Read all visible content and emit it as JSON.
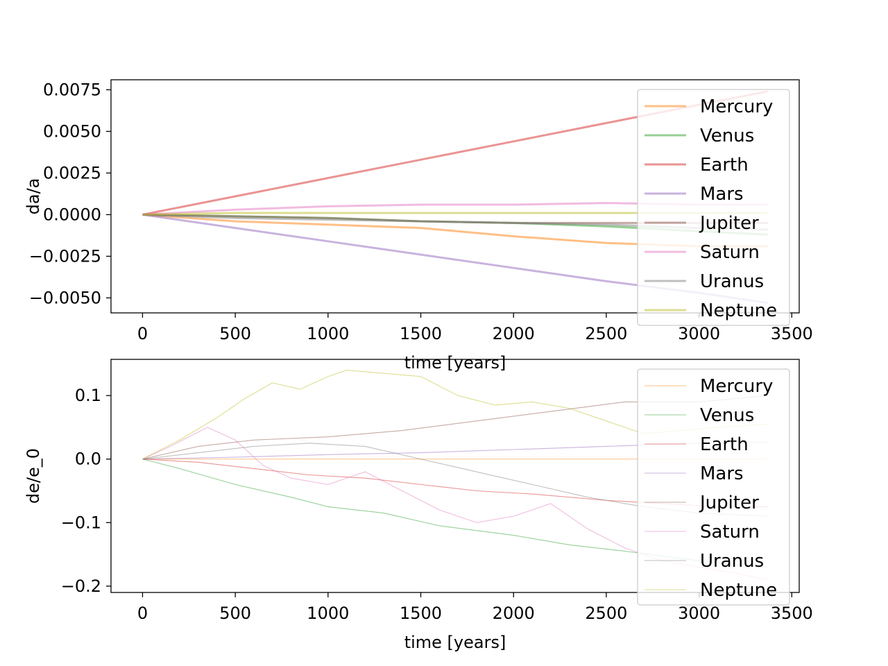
{
  "chart_data": [
    {
      "type": "line",
      "title": "",
      "xlabel": "time [years]",
      "ylabel": "da/a",
      "xlim": [
        -170,
        3540
      ],
      "ylim": [
        -0.0059,
        0.0081
      ],
      "xticks": [
        0,
        500,
        1000,
        1500,
        2000,
        2500,
        3000,
        3500
      ],
      "xtick_labels": [
        "0",
        "500",
        "1000",
        "1500",
        "2000",
        "2500",
        "3000",
        "3500"
      ],
      "yticks": [
        -0.005,
        -0.0025,
        0.0,
        0.0025,
        0.005,
        0.0075
      ],
      "ytick_labels": [
        "−0.0050",
        "−0.0025",
        "0.0000",
        "0.0025",
        "0.0050",
        "0.0075"
      ],
      "legend": {
        "location": "top-right",
        "show": true
      },
      "grid": false,
      "series": [
        {
          "name": "Mercury",
          "color": "#ff7f0e",
          "x": [
            0,
            500,
            1000,
            1500,
            2000,
            2500,
            3000,
            3370
          ],
          "y": [
            0,
            -0.0004,
            -0.0006,
            -0.0008,
            -0.0013,
            -0.0017,
            -0.0019,
            -0.0019
          ]
        },
        {
          "name": "Venus",
          "color": "#2ca02c",
          "x": [
            0,
            500,
            1000,
            1500,
            2000,
            2500,
            3000,
            3370
          ],
          "y": [
            0,
            -0.0001,
            -0.0002,
            -0.0004,
            -0.0005,
            -0.0007,
            -0.001,
            -0.0012
          ]
        },
        {
          "name": "Earth",
          "color": "#d62728",
          "x": [
            0,
            500,
            1000,
            1500,
            2000,
            2500,
            3000,
            3370
          ],
          "y": [
            0,
            0.0011,
            0.0022,
            0.0033,
            0.0044,
            0.0055,
            0.0066,
            0.0074
          ]
        },
        {
          "name": "Mars",
          "color": "#9467bd",
          "x": [
            0,
            500,
            1000,
            1500,
            2000,
            2500,
            3000,
            3370
          ],
          "y": [
            0,
            -0.0008,
            -0.0016,
            -0.0024,
            -0.0032,
            -0.004,
            -0.0047,
            -0.0053
          ]
        },
        {
          "name": "Jupiter",
          "color": "#8c564b",
          "x": [
            0,
            500,
            1000,
            1500,
            2000,
            2500,
            3000,
            3370
          ],
          "y": [
            0,
            -0.0001,
            -0.0002,
            -0.0004,
            -0.0005,
            -0.0005,
            -0.0005,
            -0.0005
          ]
        },
        {
          "name": "Saturn",
          "color": "#e377c2",
          "x": [
            0,
            500,
            1000,
            1500,
            2000,
            2500,
            3000,
            3370
          ],
          "y": [
            0,
            0.0003,
            0.0005,
            0.0006,
            0.0006,
            0.0007,
            0.0006,
            0.0006
          ]
        },
        {
          "name": "Uranus",
          "color": "#7f7f7f",
          "x": [
            0,
            500,
            1000,
            1500,
            2000,
            2500,
            3000,
            3370
          ],
          "y": [
            0,
            -0.0002,
            -0.0003,
            -0.0004,
            -0.0005,
            -0.0006,
            -0.0008,
            -0.0009
          ]
        },
        {
          "name": "Neptune",
          "color": "#bcbd22",
          "x": [
            0,
            500,
            1000,
            1500,
            2000,
            2500,
            3000,
            3370
          ],
          "y": [
            0,
            0.0001,
            0.0001,
            0.0001,
            0.0001,
            0.0001,
            0.0001,
            0.0001
          ]
        }
      ]
    },
    {
      "type": "line",
      "title": "",
      "xlabel": "time [years]",
      "ylabel": "de/e_0",
      "xlim": [
        -170,
        3540
      ],
      "ylim": [
        -0.21,
        0.157
      ],
      "xticks": [
        0,
        500,
        1000,
        1500,
        2000,
        2500,
        3000,
        3500
      ],
      "xtick_labels": [
        "0",
        "500",
        "1000",
        "1500",
        "2000",
        "2500",
        "3000",
        "3500"
      ],
      "yticks": [
        -0.2,
        -0.1,
        0.0,
        0.1
      ],
      "ytick_labels": [
        "−0.2",
        "−0.1",
        "0.0",
        "0.1"
      ],
      "legend": {
        "location": "top-right",
        "show": true
      },
      "grid": false,
      "series": [
        {
          "name": "Mercury",
          "color": "#ff7f0e",
          "x": [
            0,
            500,
            1000,
            1500,
            2000,
            2500,
            3000,
            3370
          ],
          "y": [
            0,
            0.0,
            0.0,
            0.0,
            0.0,
            0.0,
            0.0,
            0.0
          ]
        },
        {
          "name": "Venus",
          "color": "#2ca02c",
          "x": [
            0,
            200,
            500,
            800,
            1000,
            1300,
            1600,
            2000,
            2300,
            2600,
            3000,
            3370
          ],
          "y": [
            0,
            -0.015,
            -0.04,
            -0.06,
            -0.075,
            -0.085,
            -0.105,
            -0.12,
            -0.135,
            -0.145,
            -0.16,
            -0.17
          ]
        },
        {
          "name": "Earth",
          "color": "#d62728",
          "x": [
            0,
            300,
            600,
            900,
            1200,
            1500,
            1800,
            2100,
            2500,
            2800,
            3100,
            3370
          ],
          "y": [
            0,
            -0.005,
            -0.015,
            -0.025,
            -0.03,
            -0.04,
            -0.05,
            -0.055,
            -0.065,
            -0.07,
            -0.075,
            -0.075
          ]
        },
        {
          "name": "Mars",
          "color": "#9467bd",
          "x": [
            0,
            500,
            1000,
            1500,
            2000,
            2500,
            3000,
            3370
          ],
          "y": [
            0,
            0.003,
            0.007,
            0.01,
            0.015,
            0.02,
            0.025,
            0.027
          ]
        },
        {
          "name": "Jupiter",
          "color": "#8c564b",
          "x": [
            0,
            300,
            600,
            1000,
            1400,
            1800,
            2200,
            2600,
            3000,
            3370
          ],
          "y": [
            0,
            0.02,
            0.03,
            0.035,
            0.045,
            0.06,
            0.075,
            0.09,
            0.09,
            0.1
          ]
        },
        {
          "name": "Saturn",
          "color": "#e377c2",
          "x": [
            0,
            150,
            350,
            500,
            650,
            800,
            1000,
            1200,
            1400,
            1600,
            1800,
            2000,
            2200,
            2400,
            2600,
            2800,
            3000,
            3200,
            3370
          ],
          "y": [
            0,
            0.02,
            0.05,
            0.03,
            -0.01,
            -0.03,
            -0.04,
            -0.02,
            -0.05,
            -0.08,
            -0.1,
            -0.09,
            -0.07,
            -0.11,
            -0.14,
            -0.16,
            -0.17,
            -0.18,
            -0.19
          ]
        },
        {
          "name": "Uranus",
          "color": "#7f7f7f",
          "x": [
            0,
            300,
            600,
            900,
            1200,
            1500,
            1800,
            2100,
            2400,
            2700,
            3000,
            3370
          ],
          "y": [
            0,
            0.01,
            0.02,
            0.025,
            0.02,
            0.0,
            -0.02,
            -0.04,
            -0.06,
            -0.075,
            -0.085,
            -0.09
          ]
        },
        {
          "name": "Neptune",
          "color": "#bcbd22",
          "x": [
            0,
            200,
            400,
            550,
            700,
            850,
            1000,
            1100,
            1300,
            1500,
            1700,
            1900,
            2100,
            2300,
            2500,
            2700,
            2900,
            3100,
            3370
          ],
          "y": [
            0,
            0.03,
            0.065,
            0.095,
            0.12,
            0.11,
            0.13,
            0.14,
            0.135,
            0.13,
            0.1,
            0.085,
            0.09,
            0.08,
            0.06,
            0.04,
            0.045,
            0.05,
            0.055
          ]
        }
      ]
    }
  ]
}
